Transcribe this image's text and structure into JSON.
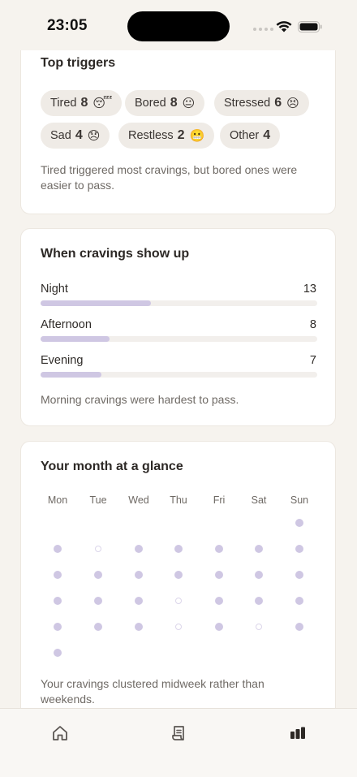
{
  "status_bar": {
    "time": "23:05"
  },
  "triggers": {
    "title": "Top triggers",
    "chips": [
      {
        "label": "Tired",
        "count": "8",
        "emoji": "😴"
      },
      {
        "label": "Bored",
        "count": "8",
        "emoji": "😐"
      },
      {
        "label": "Stressed",
        "count": "6",
        "emoji": "😣"
      },
      {
        "label": "Sad",
        "count": "4",
        "emoji": "😞"
      },
      {
        "label": "Restless",
        "count": "2",
        "emoji": "😬"
      },
      {
        "label": "Other",
        "count": "4",
        "emoji": ""
      }
    ],
    "note": "Tired triggered most cravings, but bored ones were easier to pass."
  },
  "times": {
    "title": "When cravings show up",
    "rows": [
      {
        "label": "Night",
        "value": "13",
        "fraction": 0.4
      },
      {
        "label": "Afternoon",
        "value": "8",
        "fraction": 0.25
      },
      {
        "label": "Evening",
        "value": "7",
        "fraction": 0.22
      }
    ],
    "note": "Morning cravings were hardest to pass."
  },
  "month": {
    "title": "Your month at a glance",
    "weekdays": [
      "Mon",
      "Tue",
      "Wed",
      "Thu",
      "Fri",
      "Sat",
      "Sun"
    ],
    "weeks": [
      [
        null,
        null,
        null,
        null,
        null,
        null,
        "filled"
      ],
      [
        "filled",
        "empty",
        "filled",
        "filled",
        "filled",
        "filled",
        "filled"
      ],
      [
        "filled",
        "filled",
        "filled",
        "filled",
        "filled",
        "filled",
        "filled"
      ],
      [
        "filled",
        "filled",
        "filled",
        "empty",
        "filled",
        "filled",
        "filled"
      ],
      [
        "filled",
        "filled",
        "filled",
        "empty",
        "filled",
        "empty",
        "filled"
      ],
      [
        "filled",
        null,
        null,
        null,
        null,
        null,
        null
      ]
    ],
    "note": "Your cravings clustered midweek rather than weekends."
  },
  "tab_bar": {
    "tabs": [
      {
        "icon": "home-icon",
        "active": false
      },
      {
        "icon": "journal-icon",
        "active": false
      },
      {
        "icon": "stats-icon",
        "active": true
      }
    ]
  },
  "colors": {
    "background": "#f6f3ee",
    "accent_bar": "#cfc7e3",
    "chip": "#efebe6"
  }
}
